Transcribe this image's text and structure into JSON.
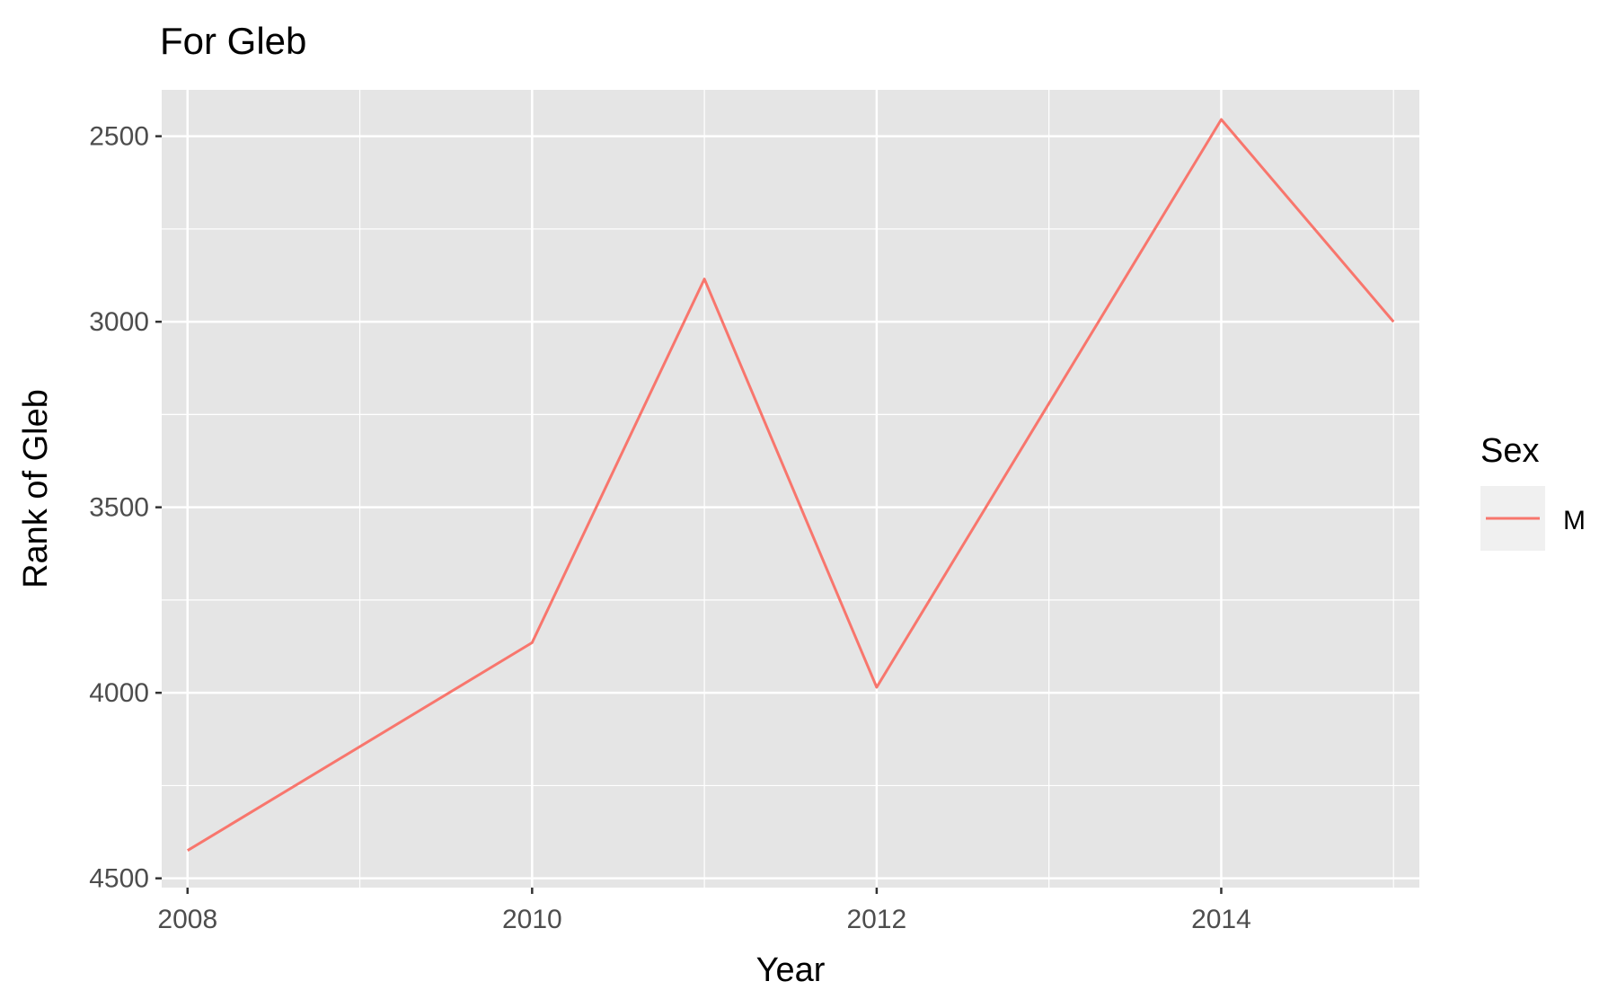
{
  "chart_data": {
    "type": "line",
    "title": "For Gleb",
    "xlabel": "Year",
    "ylabel": "Rank of Gleb",
    "x_ticks": [
      "2008",
      "2010",
      "2012",
      "2014"
    ],
    "y_ticks": [
      "2500",
      "3000",
      "3500",
      "4000",
      "4500"
    ],
    "y_reversed": true,
    "xlim": [
      2007.85,
      2015.15
    ],
    "ylim": [
      2375,
      4525
    ],
    "grid": true,
    "legend": {
      "title": "Sex",
      "position": "right"
    },
    "series": [
      {
        "name": "M",
        "color": "#F8766D",
        "x": [
          2008,
          2010,
          2011,
          2012,
          2014,
          2015
        ],
        "y": [
          4425,
          3865,
          2885,
          3985,
          2455,
          3000
        ]
      }
    ]
  }
}
